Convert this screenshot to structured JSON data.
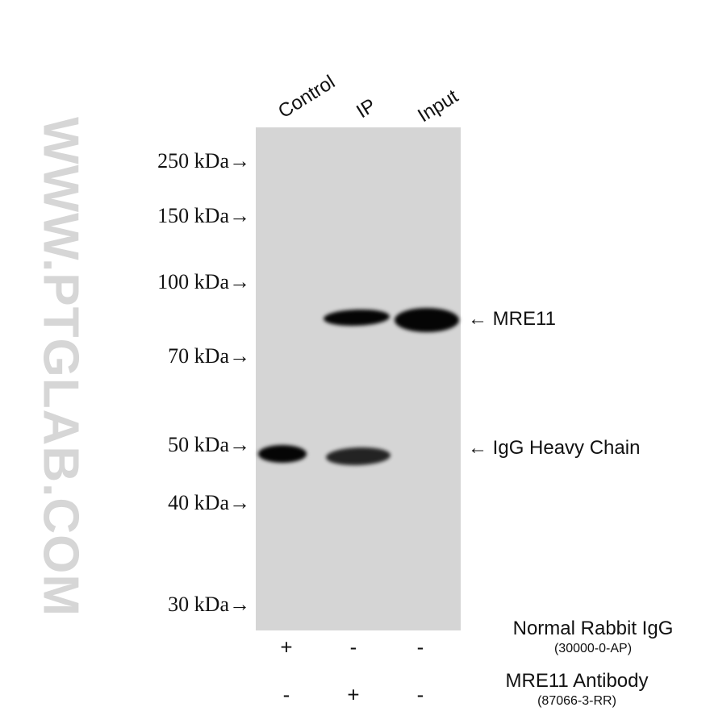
{
  "watermark": "WWW.PTGLAB.COM",
  "lanes": [
    "Control",
    "IP",
    "Input"
  ],
  "markers": [
    "250 kDa→",
    "150 kDa→",
    "100 kDa→",
    "70 kDa→",
    "50 kDa→",
    "40 kDa→",
    "30 kDa→"
  ],
  "bands": [
    {
      "arrow": "←",
      "label": "MRE11"
    },
    {
      "arrow": "←",
      "label": "IgG Heavy Chain"
    }
  ],
  "conditions": [
    {
      "name": "Normal Rabbit IgG",
      "catalog": "(30000-0-AP)",
      "signs": [
        "+",
        "-",
        "-"
      ]
    },
    {
      "name": "MRE11 Antibody",
      "catalog": "(87066-3-RR)",
      "signs": [
        "-",
        "+",
        "-"
      ]
    }
  ]
}
